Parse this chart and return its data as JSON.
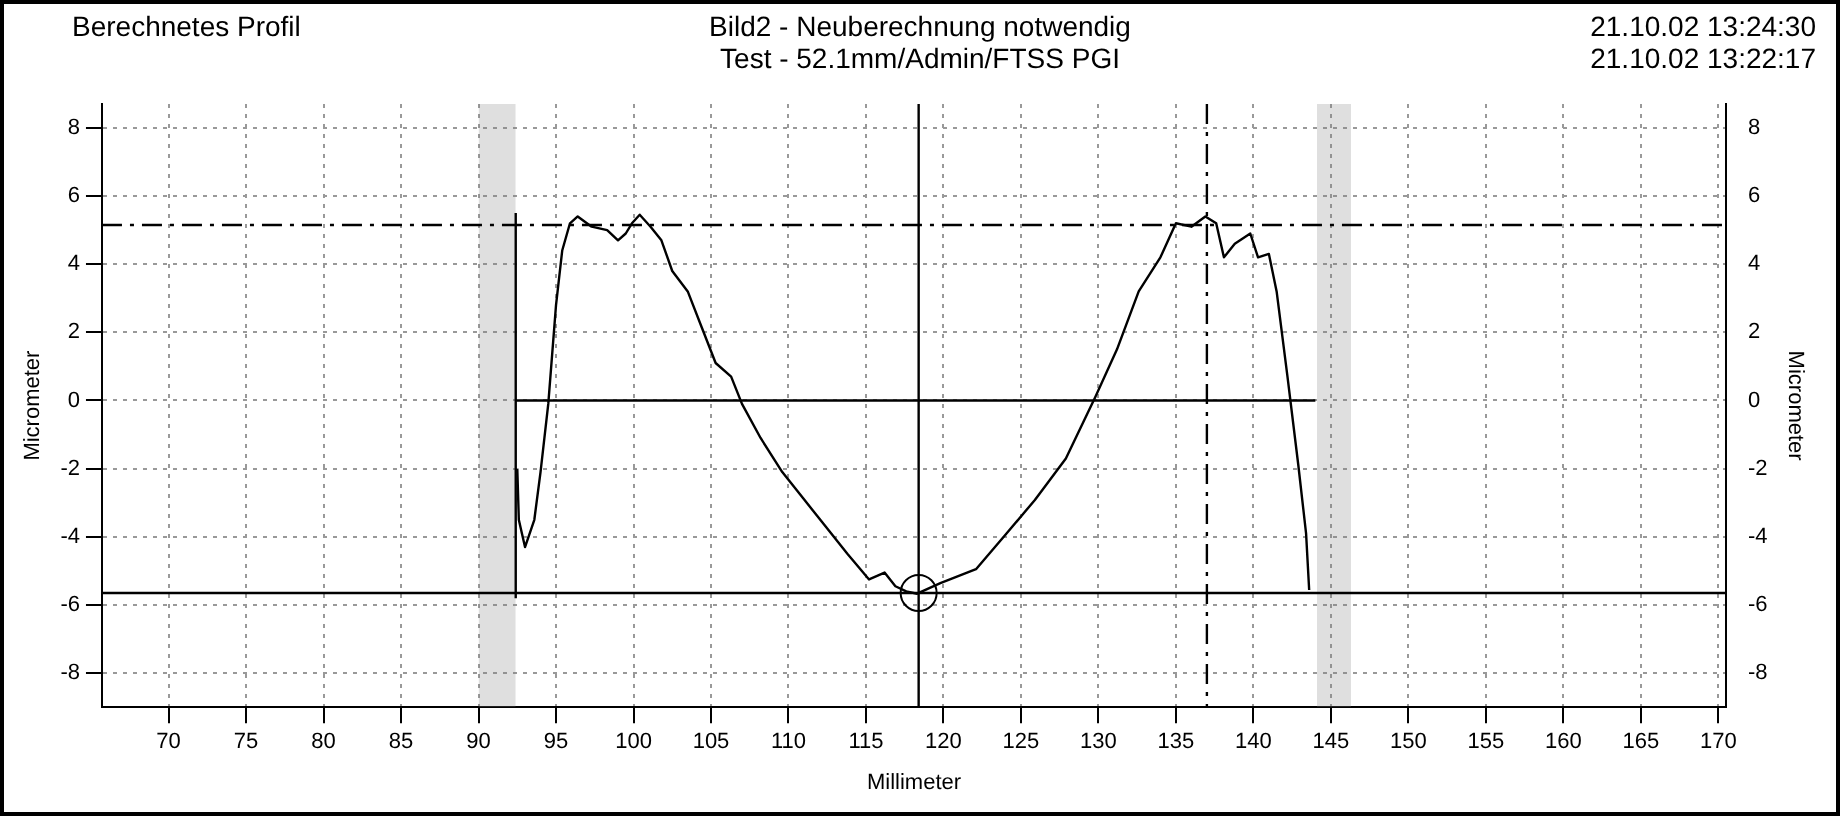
{
  "chart_data": {
    "type": "line",
    "title": "Bild2 - Neuberechnung notwendig",
    "subtitle": "Test - 52.1mm/Admin/FTSS PGI",
    "annotations": [
      "Berechnetes Profil",
      "21.10.02 13:24:30",
      "21.10.02 13:22:17"
    ],
    "xlabel": "Millimeter",
    "ylabel": "Micrometer",
    "y2label": "Micrometer",
    "xlim": [
      65.7,
      170.5
    ],
    "xticks": [
      70,
      75,
      80,
      85,
      90,
      95,
      100,
      105,
      110,
      115,
      120,
      125,
      130,
      135,
      140,
      145,
      150,
      155,
      160,
      165,
      170
    ],
    "ylim": [
      -9,
      8.7
    ],
    "yticks": [
      -8,
      -6,
      -4,
      -2,
      0,
      2,
      4,
      6,
      8
    ],
    "y2lim": [
      -9,
      8.7
    ],
    "y2ticks": [
      -8,
      -6,
      -4,
      -2,
      0,
      2,
      4,
      6,
      8
    ],
    "grid": true,
    "legend": false,
    "marker": "none",
    "series": [
      {
        "type": "line",
        "color": "#000000",
        "x": [
          92.5,
          92.6,
          92.8,
          93.0,
          93.6,
          94.0,
          94.5,
          95.0,
          95.4,
          95.9,
          96.4,
          97.3,
          98.3,
          99.0,
          99.5,
          99.9,
          100.4,
          101.1,
          101.8,
          102.5,
          103.5,
          104.4,
          105.3,
          106.3,
          107.0,
          108.2,
          109.6,
          111.0,
          112.4,
          113.8,
          115.2,
          116.2,
          116.9,
          117.6,
          118.3,
          119.8,
          122.1,
          124.0,
          125.9,
          127.9,
          129.8,
          131.2,
          132.6,
          134.0,
          135.0,
          136.0,
          136.9,
          137.6,
          138.1,
          138.8,
          139.8,
          140.3,
          141.0,
          141.5,
          142.2,
          142.9,
          143.4,
          143.6
        ],
        "values": [
          -2.0,
          -3.5,
          -3.9,
          -4.3,
          -3.5,
          -2.1,
          -0.1,
          2.8,
          4.4,
          5.2,
          5.4,
          5.1,
          5.0,
          4.7,
          4.9,
          5.2,
          5.45,
          5.1,
          4.7,
          3.8,
          3.2,
          2.15,
          1.1,
          0.7,
          -0.1,
          -1.1,
          -2.1,
          -2.9,
          -3.7,
          -4.5,
          -5.25,
          -5.05,
          -5.45,
          -5.6,
          -5.67,
          -5.36,
          -4.95,
          -3.94,
          -2.92,
          -1.7,
          0.1,
          1.5,
          3.2,
          4.2,
          5.2,
          5.1,
          5.4,
          5.2,
          4.2,
          4.6,
          4.9,
          4.2,
          4.3,
          3.2,
          0.7,
          -1.9,
          -3.9,
          -5.56
        ]
      },
      {
        "type": "line",
        "color": "#000000",
        "x": [
          92.4,
          144.0
        ],
        "values": [
          0,
          0
        ]
      },
      {
        "type": "line",
        "color": "#000000",
        "x": [
          92.4,
          92.4
        ],
        "values": [
          -5.8,
          5.5
        ]
      },
      {
        "type": "scatter",
        "color": "#000000",
        "marker": "circle",
        "x": [
          118.4
        ],
        "values": [
          -5.65
        ]
      }
    ],
    "ref_lines": [
      {
        "axis": "y",
        "value": 5.15,
        "line_style": "dashed",
        "color": "#000000"
      },
      {
        "axis": "y",
        "value": -5.65,
        "line_style": "solid",
        "color": "#000000"
      },
      {
        "axis": "x",
        "value": 118.4,
        "line_style": "solid",
        "color": "#000000"
      },
      {
        "axis": "x",
        "value": 137.0,
        "line_style": "dashed",
        "color": "#000000"
      }
    ],
    "bands": [
      {
        "axis": "x",
        "from": 90.0,
        "to": 92.4,
        "color": "#808080"
      },
      {
        "axis": "x",
        "from": 144.1,
        "to": 146.3,
        "color": "#808080"
      }
    ]
  }
}
